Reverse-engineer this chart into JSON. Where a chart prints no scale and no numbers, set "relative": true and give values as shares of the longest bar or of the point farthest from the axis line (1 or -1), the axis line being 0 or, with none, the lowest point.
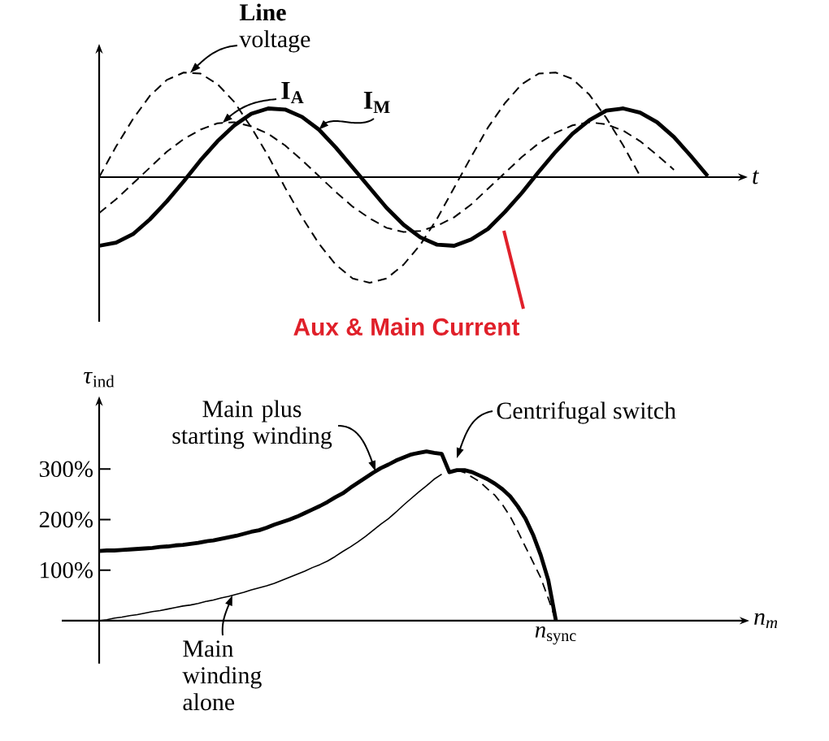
{
  "chart_data": [
    {
      "type": "line",
      "relative": true,
      "xlabel": "t",
      "marker": "none",
      "categories": [
        null,
        null,
        null,
        null,
        null,
        null,
        null,
        null,
        null,
        null,
        null,
        null,
        null,
        null,
        null,
        null,
        null,
        null,
        null,
        null,
        null,
        null,
        null,
        null,
        null,
        null,
        null,
        null,
        null,
        null,
        null,
        null,
        null,
        null,
        null,
        null,
        null
      ],
      "series": [
        {
          "name": "**Line** voltage",
          "color": "#000000",
          "line_style": "dashed",
          "values": [
            0,
            0.29,
            0.55,
            0.77,
            0.92,
            0.99,
            0.98,
            0.88,
            0.71,
            0.47,
            0.2,
            -0.1,
            -0.38,
            -0.63,
            -0.83,
            -0.96,
            -1,
            -0.96,
            -0.83,
            -0.64,
            -0.39,
            -0.1,
            0.19,
            0.47,
            0.7,
            0.88,
            0.98,
            0.99,
            0.93,
            0.78,
            0.56,
            0.3,
            0.01,
            null,
            null,
            null,
            null
          ]
        },
        {
          "name": "I$_{A}$",
          "color": "#000000",
          "line_style": "dashed",
          "values": [
            -0.34,
            -0.21,
            -0.06,
            0.09,
            0.24,
            0.36,
            0.45,
            0.51,
            0.52,
            0.48,
            0.41,
            0.3,
            0.16,
            0.01,
            -0.14,
            -0.28,
            -0.39,
            -0.48,
            -0.52,
            -0.51,
            -0.46,
            -0.38,
            -0.26,
            -0.11,
            0.04,
            0.19,
            0.32,
            0.42,
            0.49,
            0.52,
            0.5,
            0.44,
            0.34,
            0.21,
            0.07,
            null,
            null
          ]
        },
        {
          "name": "I$_{M}$",
          "color": "#000000",
          "line_style": "solid",
          "values": [
            -0.65,
            -0.62,
            -0.54,
            -0.4,
            -0.23,
            -0.04,
            0.16,
            0.34,
            0.49,
            0.6,
            0.65,
            0.64,
            0.57,
            0.45,
            0.28,
            0.09,
            -0.1,
            -0.29,
            -0.45,
            -0.57,
            -0.64,
            -0.65,
            -0.59,
            -0.49,
            -0.33,
            -0.15,
            0.05,
            0.24,
            0.41,
            0.54,
            0.63,
            0.65,
            0.61,
            0.52,
            0.38,
            0.2,
            0.01
          ]
        }
      ],
      "annotations": [
        "Aux & Main Current"
      ]
    },
    {
      "type": "line",
      "xlabel": "n$_{m}$",
      "ylabel": "*τ*$_{ind}$",
      "marker": "none",
      "categories": [
        null,
        null,
        null,
        null,
        null,
        null,
        null,
        null,
        null,
        null,
        null,
        null,
        null,
        null,
        null,
        null,
        null,
        null,
        null,
        null,
        null,
        null,
        null,
        null,
        null,
        null,
        null,
        null,
        null,
        null,
        null,
        null,
        null,
        null,
        null,
        null,
        null,
        null,
        null,
        null,
        null,
        null,
        null,
        null,
        null,
        null,
        null,
        null,
        null,
        null,
        null,
        null,
        null,
        null,
        null,
        null,
        null,
        null,
        null,
        null,
        "*n*$_{sync}$",
        null,
        null,
        null,
        null,
        null,
        null,
        null,
        null,
        null,
        null,
        null,
        null,
        null,
        null,
        null,
        null,
        null,
        null,
        null,
        null,
        null,
        null,
        null
      ],
      "ylim": [
        -85,
        425
      ],
      "yticks": [
        {
          "value": 100,
          "label": "100%"
        },
        {
          "value": 200,
          "label": "200%"
        },
        {
          "value": 300,
          "label": "300%"
        }
      ],
      "series": [
        {
          "name": "Main plus starting winding",
          "color": "#000000",
          "line_style": "solid",
          "values": [
            138,
            139,
            139,
            140,
            141,
            142,
            143,
            144,
            146,
            147,
            149,
            150,
            152,
            154,
            157,
            159,
            162,
            165,
            168,
            172,
            176,
            179,
            184,
            190,
            195,
            200,
            206,
            213,
            220,
            227,
            235,
            244,
            252,
            263,
            273,
            283,
            293,
            302,
            309,
            317,
            323,
            329,
            332,
            335,
            332,
            330,
            294,
            298,
            298,
            294,
            287,
            280,
            271,
            260,
            246,
            226,
            202,
            170,
            130,
            80,
            0,
            null,
            null,
            null,
            null,
            null,
            null,
            null,
            null,
            null,
            null,
            null,
            null,
            null,
            null,
            null,
            null,
            null,
            null,
            null,
            null,
            null,
            null,
            null
          ]
        },
        {
          "name": "Main winding alone",
          "color": "#000000",
          "line_style": "solid",
          "values": [
            0,
            2,
            5,
            7,
            10,
            12,
            15,
            18,
            20,
            23,
            26,
            29,
            31,
            34,
            38,
            41,
            45,
            48,
            52,
            56,
            61,
            65,
            69,
            74,
            80,
            86,
            92,
            98,
            105,
            111,
            118,
            127,
            137,
            146,
            156,
            167,
            179,
            191,
            202,
            215,
            229,
            242,
            255,
            267,
            280,
            290,
            null,
            null,
            null,
            null,
            null,
            null,
            null,
            null,
            null,
            null,
            null,
            null,
            null,
            null,
            null,
            null,
            null,
            null,
            null,
            null,
            null,
            null,
            null,
            null,
            null,
            null,
            null,
            null,
            null,
            null,
            null,
            null,
            null,
            null,
            null,
            null,
            null,
            null
          ]
        },
        {
          "color": "#000000",
          "line_style": "dashed",
          "values": [
            null,
            null,
            null,
            null,
            null,
            null,
            null,
            null,
            null,
            null,
            null,
            null,
            null,
            null,
            null,
            null,
            null,
            null,
            null,
            null,
            null,
            null,
            null,
            null,
            null,
            null,
            null,
            null,
            null,
            null,
            null,
            null,
            null,
            null,
            null,
            null,
            null,
            null,
            null,
            null,
            null,
            null,
            null,
            null,
            null,
            null,
            null,
            298,
            293,
            284,
            275,
            261,
            248,
            229,
            206,
            177,
            146,
            116,
            85,
            44,
            0,
            null,
            null,
            null,
            null,
            null,
            null,
            null,
            null,
            null,
            null,
            null,
            null,
            null,
            null,
            null,
            null,
            null,
            null,
            null,
            null,
            null,
            null,
            null
          ]
        }
      ],
      "annotations": [
        "Centrifugal switch"
      ]
    }
  ]
}
